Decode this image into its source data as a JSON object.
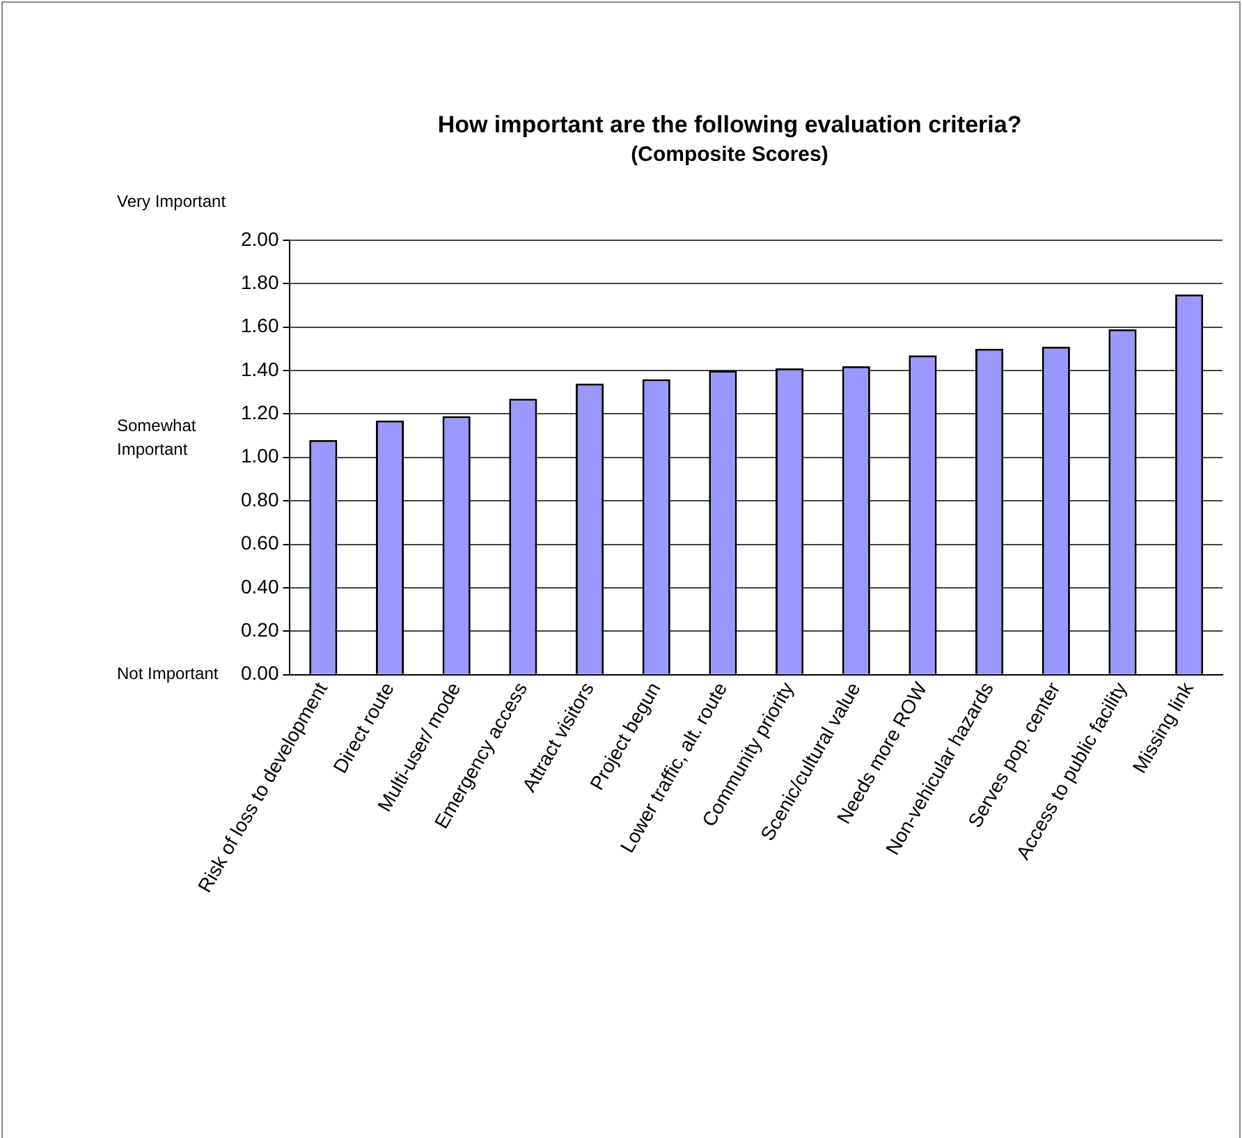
{
  "chart_data": {
    "type": "bar",
    "title": "How important are the following evaluation criteria?",
    "subtitle": "(Composite Scores)",
    "categories": [
      "Risk of loss to development",
      "Direct route",
      "Multi-user/ mode",
      "Emergency access",
      "Attract visitors",
      "Project begun",
      "Lower traffic, alt. route",
      "Community priority",
      "Scenic/cultural value",
      "Needs more ROW",
      "Non-vehicular hazards",
      "Serves pop. center",
      "Access to public facility",
      "Missing link"
    ],
    "values": [
      1.08,
      1.17,
      1.19,
      1.27,
      1.34,
      1.36,
      1.4,
      1.41,
      1.42,
      1.47,
      1.5,
      1.51,
      1.59,
      1.75
    ],
    "color": "#9999ff",
    "ylim": [
      0,
      2
    ],
    "yticks": [
      {
        "value": 0,
        "label": "0.00"
      },
      {
        "value": 0.2,
        "label": "0.20"
      },
      {
        "value": 0.4,
        "label": "0.40"
      },
      {
        "value": 0.6,
        "label": "0.60"
      },
      {
        "value": 0.8,
        "label": "0.80"
      },
      {
        "value": 1,
        "label": "1.00"
      },
      {
        "value": 1.2,
        "label": "1.20"
      },
      {
        "value": 1.4,
        "label": "1.40"
      },
      {
        "value": 1.6,
        "label": "1.60"
      },
      {
        "value": 1.8,
        "label": "1.80"
      },
      {
        "value": 2,
        "label": "2.00"
      }
    ],
    "grid": "y",
    "annotations": [
      "Very Important",
      "Somewhat Important",
      "Not Important"
    ]
  }
}
